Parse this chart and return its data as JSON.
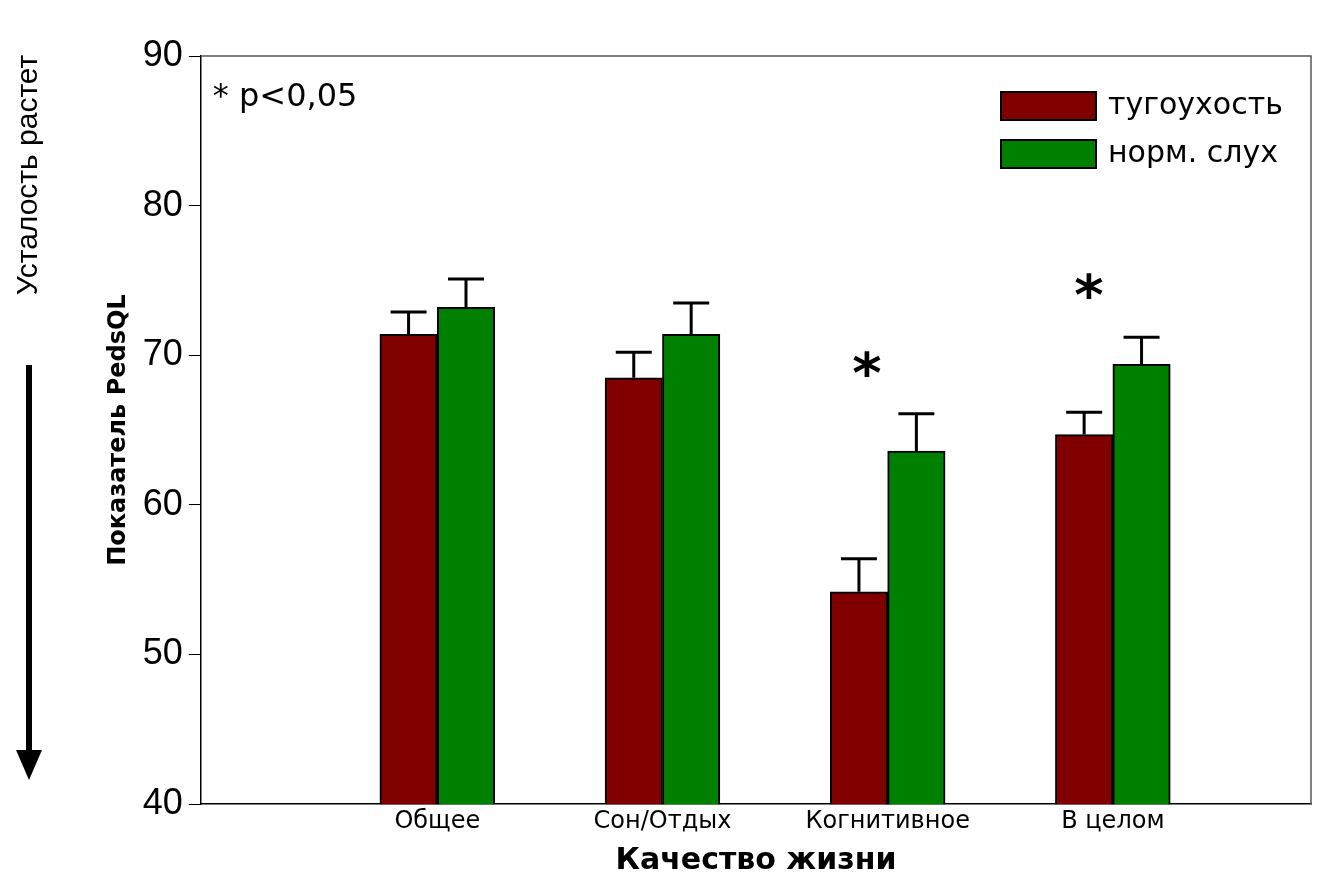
{
  "chart_data": {
    "type": "bar",
    "xlabel": "Качество жизни",
    "ylabel": "Показатель PedsQL",
    "categories": [
      "Общее",
      "Сон/Отдых",
      "Когнитивное",
      "В целом"
    ],
    "series": [
      {
        "name": "тугоухость",
        "color": "#800000",
        "values": [
          71.4,
          68.5,
          54.2,
          64.7
        ],
        "errors": [
          [
            71.4,
            72.9
          ],
          [
            68.5,
            70.2
          ],
          [
            54.2,
            56.4
          ],
          [
            64.7,
            66.2
          ]
        ]
      },
      {
        "name": "норм. слух",
        "color": "#008000",
        "values": [
          73.2,
          71.4,
          63.6,
          69.4
        ],
        "errors": [
          [
            73.2,
            75.1
          ],
          [
            71.4,
            73.5
          ],
          [
            63.6,
            66.1
          ],
          [
            69.4,
            71.2
          ]
        ]
      }
    ],
    "ylim": [
      40,
      90
    ],
    "yticks": [
      40,
      50,
      60,
      70,
      80,
      90
    ],
    "grid": false,
    "legend": "top right",
    "annotations": [
      "* p<0,05",
      "Усталость растет",
      "*",
      "*"
    ]
  }
}
